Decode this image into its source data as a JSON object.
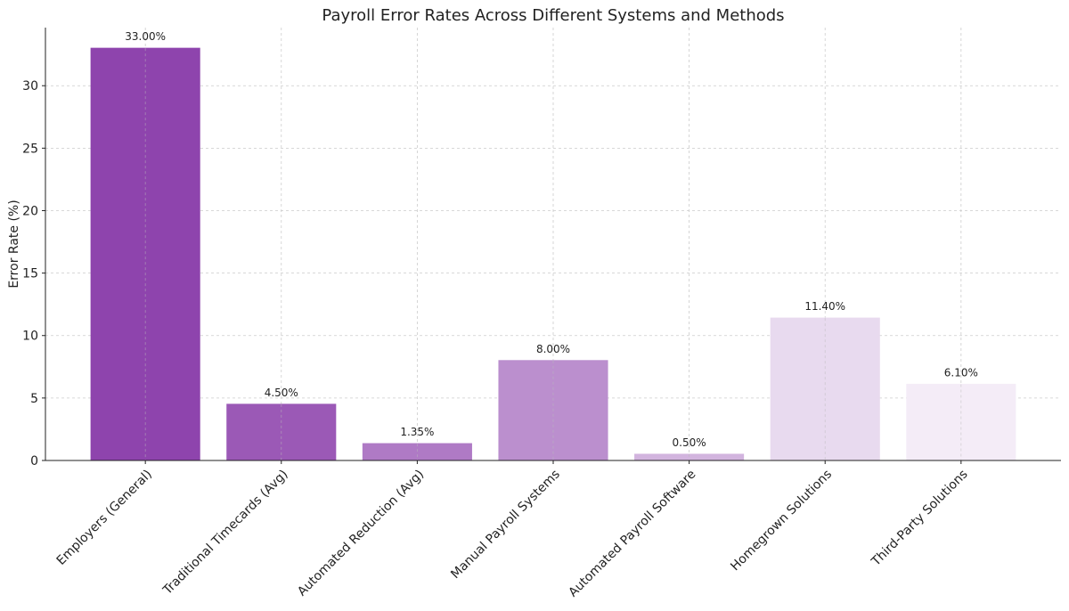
{
  "chart_data": {
    "type": "bar",
    "title": "Payroll Error Rates Across Different Systems and Methods",
    "xlabel": "",
    "ylabel": "Error Rate (%)",
    "categories": [
      "Employers (General)",
      "Traditional Timecards (Avg)",
      "Automated Reduction (Avg)",
      "Manual Payroll Systems",
      "Automated Payroll Software",
      "Homegrown Solutions",
      "Third-Party Solutions"
    ],
    "values": [
      33.0,
      4.5,
      1.35,
      8.0,
      0.5,
      11.4,
      6.1
    ],
    "data_labels": [
      "33.00%",
      "4.50%",
      "1.35%",
      "8.00%",
      "0.50%",
      "11.40%",
      "6.10%"
    ],
    "colors": [
      "#8E44AD",
      "#9B59B6",
      "#AF7AC5",
      "#BB8FCE",
      "#D2B4DE",
      "#E8DAEF",
      "#F4ECF7"
    ],
    "ylim": [
      0,
      34.65
    ],
    "yticks": [
      0,
      5,
      10,
      15,
      20,
      25,
      30
    ],
    "grid": true,
    "grid_style": "dashed"
  }
}
